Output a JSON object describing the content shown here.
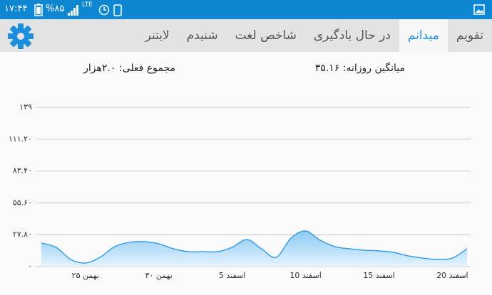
{
  "status_bar": {
    "time": "۱۷:۴۴",
    "battery": "%۸۵",
    "network": "LTE"
  },
  "tabs": [
    {
      "label": "تقویم",
      "active": false
    },
    {
      "label": "میدانم",
      "active": true
    },
    {
      "label": "در حال یادگیری",
      "active": false
    },
    {
      "label": "شاخص لغت",
      "active": false
    },
    {
      "label": "شنیدم",
      "active": false
    },
    {
      "label": "لایتنر",
      "active": false
    }
  ],
  "stats": {
    "daily_average": "میانگین روزانه: ۳۵.۱۶",
    "current_total": "مجموع فعلی: ۲.۰هزار"
  },
  "chart_data": {
    "type": "area",
    "categories": [
      null,
      null,
      null,
      "۲۵ بهمن",
      null,
      null,
      null,
      null,
      "۳۰ بهمن",
      null,
      null,
      null,
      null,
      "5 اسفند",
      null,
      null,
      null,
      null,
      "10 اسفند",
      null,
      null,
      null,
      null,
      "15 اسفند",
      null,
      null,
      null,
      null,
      "20 اسفند",
      null
    ],
    "series": [
      {
        "color": "#3a9ee4",
        "values": [
          20.5,
          16.8,
          6.2,
          3.1,
          8.1,
          17.4,
          21.1,
          21.7,
          19.9,
          15.5,
          13,
          13,
          13,
          16.8,
          23.6,
          15.5,
          8.1,
          24.8,
          31,
          23,
          17.4,
          15.5,
          14.3,
          13.7,
          12.4,
          9.3,
          7.4,
          6.2,
          7.4,
          15.5
        ]
      }
    ],
    "ylim": [
      0,
      139
    ],
    "yticks": [
      {
        "value": 0,
        "label": "۰"
      },
      {
        "value": 27.8,
        "label": "۲۷.۸۰"
      },
      {
        "value": 55.6,
        "label": "۵۵.۶۰"
      },
      {
        "value": 83.4,
        "label": "۸۳.۴۰"
      },
      {
        "value": 111.2,
        "label": "۱۱۱.۲۰"
      },
      {
        "value": 139,
        "label": "۱۳۹"
      }
    ],
    "grid": true
  }
}
